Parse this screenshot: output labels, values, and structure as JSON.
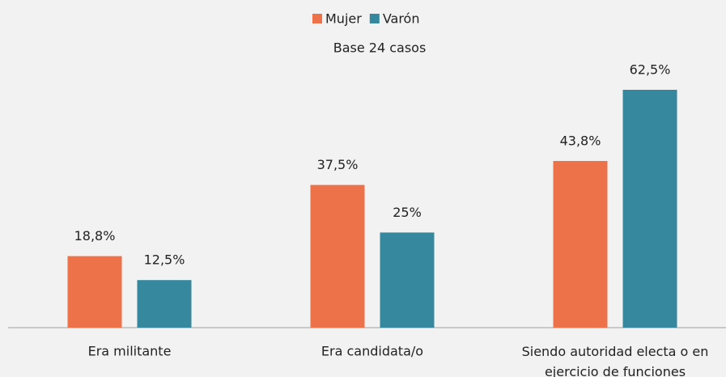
{
  "chart_data": {
    "type": "bar",
    "subtitle": "Base 24 casos",
    "categories": [
      "Era militante",
      "Era candidata/o",
      "Siendo autoridad electa o en ejercicio de funciones"
    ],
    "series": [
      {
        "name": "Mujer",
        "color": "#ee7249",
        "values": [
          18.8,
          37.5,
          43.8
        ],
        "value_labels": [
          "18,8%",
          "37,5%",
          "43,8%"
        ]
      },
      {
        "name": "Varón",
        "color": "#35889e",
        "values": [
          12.5,
          25,
          62.5
        ],
        "value_labels": [
          "12,5%",
          "25%",
          "62,5%"
        ]
      }
    ],
    "legend": "top"
  }
}
